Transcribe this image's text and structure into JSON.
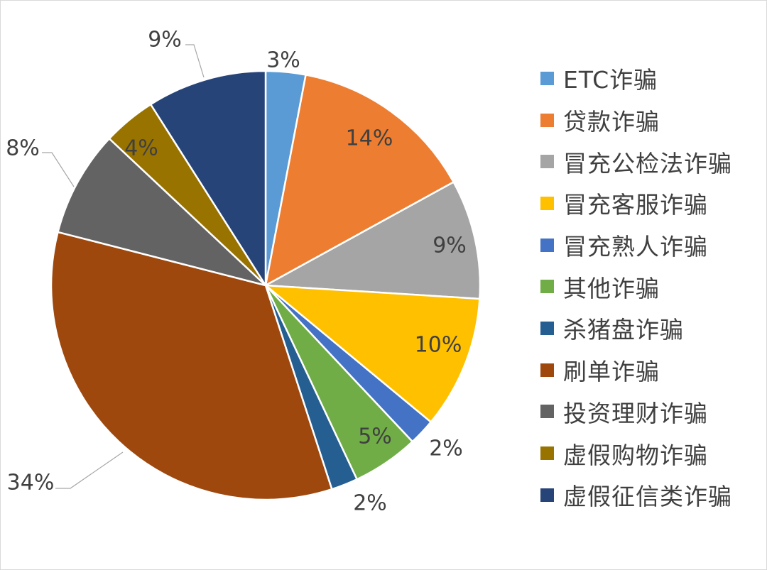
{
  "chart_data": {
    "type": "pie",
    "start_angle_deg": 0,
    "direction": "clockwise",
    "legend_position": "right",
    "slices": [
      {
        "label": "ETC诈骗",
        "value": 3,
        "percent_label": "3%",
        "color": "#5B9BD5",
        "label_placement": "outside"
      },
      {
        "label": "贷款诈骗",
        "value": 14,
        "percent_label": "14%",
        "color": "#ED7D31",
        "label_placement": "inside"
      },
      {
        "label": "冒充公检法诈骗",
        "value": 9,
        "percent_label": "9%",
        "color": "#A5A5A5",
        "label_placement": "inside"
      },
      {
        "label": "冒充客服诈骗",
        "value": 10,
        "percent_label": "10%",
        "color": "#FFC000",
        "label_placement": "inside"
      },
      {
        "label": "冒充熟人诈骗",
        "value": 2,
        "percent_label": "2%",
        "color": "#4472C4",
        "label_placement": "outside"
      },
      {
        "label": "其他诈骗",
        "value": 5,
        "percent_label": "5%",
        "color": "#70AD47",
        "label_placement": "inside"
      },
      {
        "label": "杀猪盘诈骗",
        "value": 2,
        "percent_label": "2%",
        "color": "#255E91",
        "label_placement": "outside"
      },
      {
        "label": "刷单诈骗",
        "value": 34,
        "percent_label": "34%",
        "color": "#9E480E",
        "label_placement": "outside-leader"
      },
      {
        "label": "投资理财诈骗",
        "value": 8,
        "percent_label": "8%",
        "color": "#636363",
        "label_placement": "outside-leader"
      },
      {
        "label": "虚假购物诈骗",
        "value": 4,
        "percent_label": "4%",
        "color": "#997300",
        "label_placement": "inside"
      },
      {
        "label": "虚假征信类诈骗",
        "value": 9,
        "percent_label": "9%",
        "color": "#264478",
        "label_placement": "outside-leader"
      }
    ]
  }
}
